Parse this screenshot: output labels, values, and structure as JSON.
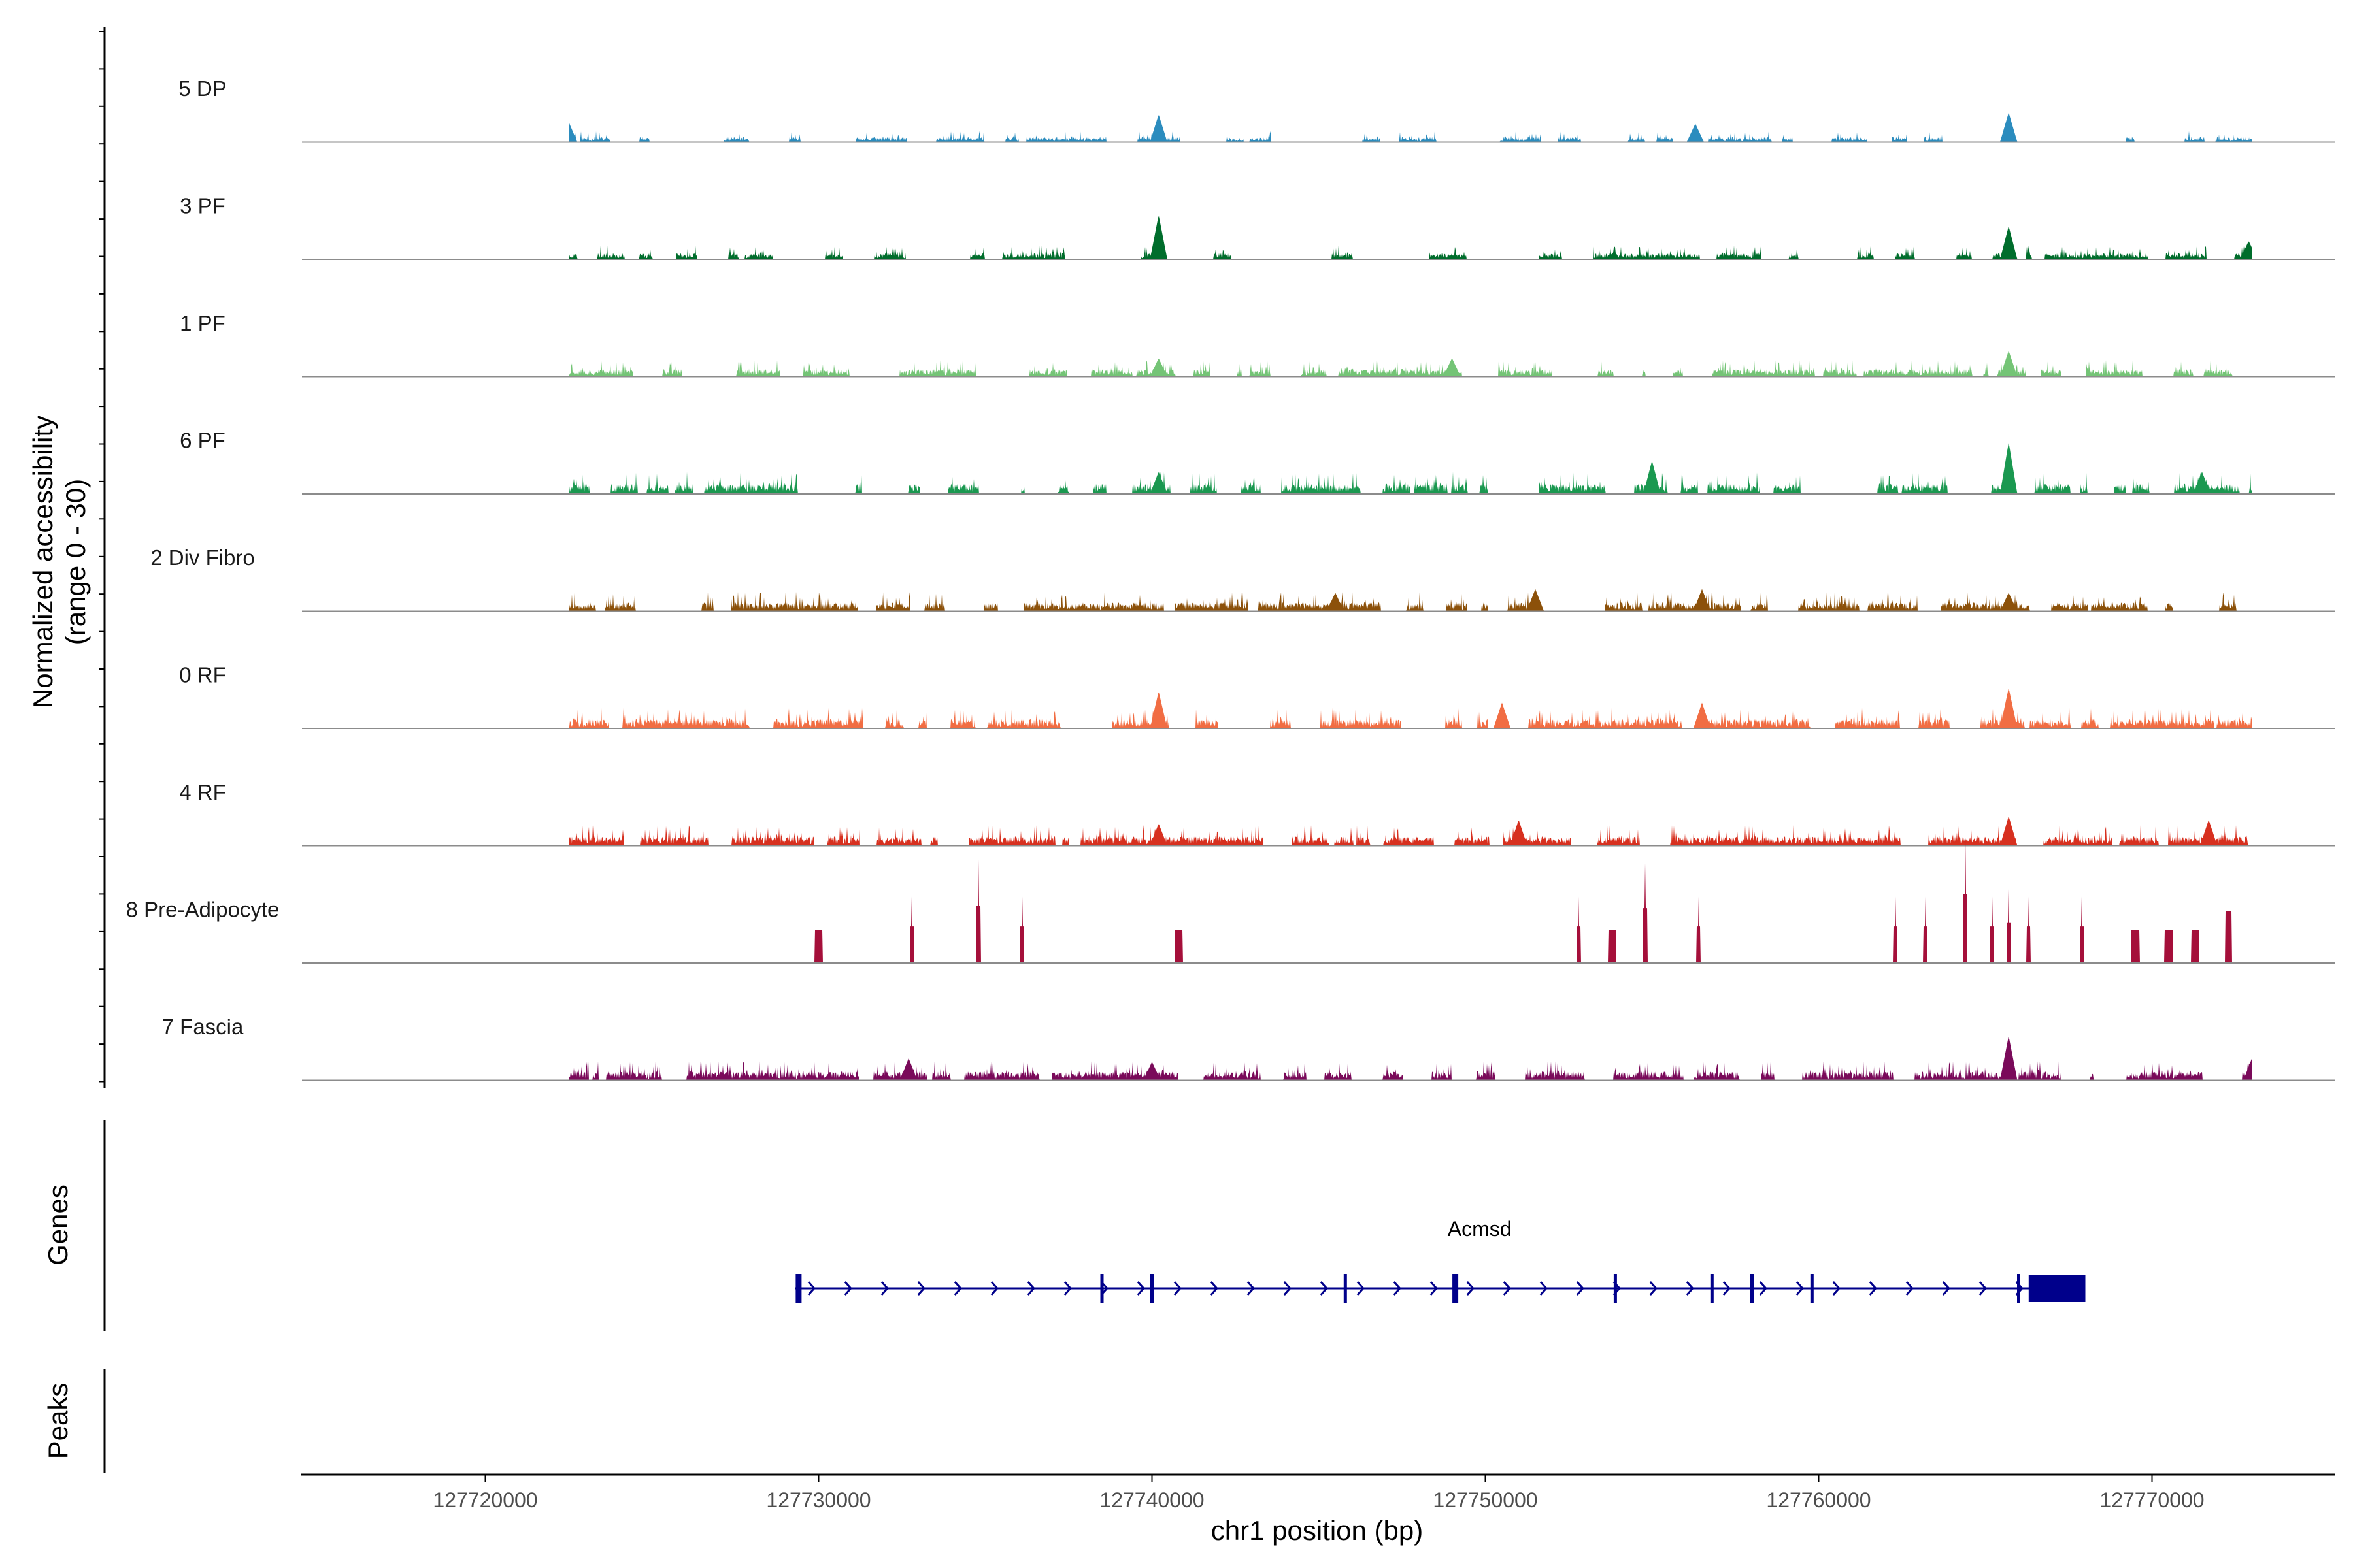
{
  "chart_data": {
    "type": "area",
    "title": "",
    "ylabel_line1": "Normalized accessibility",
    "ylabel_line2": "(range 0 - 30)",
    "ylim": [
      0,
      30
    ],
    "xlabel": "chr1 position (bp)",
    "xlim": [
      127714500,
      127775500
    ],
    "x_ticks": [
      127720000,
      127730000,
      127740000,
      127750000,
      127760000,
      127770000
    ],
    "x_tick_labels": [
      "127720000",
      "127730000",
      "127740000",
      "127750000",
      "127760000",
      "127770000"
    ],
    "panel_genes_label": "Genes",
    "panel_peaks_label": "Peaks",
    "signal_start": 127722500,
    "signal_end": 127773000,
    "tracks": [
      {
        "name": "5 DP",
        "color": "#2b8cbe",
        "seed": 11,
        "baseline": 0.8,
        "density": 0.55,
        "peaks": [
          [
            127722500,
            5.5
          ],
          [
            127740200,
            7.5
          ],
          [
            127756300,
            5
          ],
          [
            127765700,
            8
          ]
        ]
      },
      {
        "name": "3 PF",
        "color": "#006d2c",
        "seed": 23,
        "baseline": 1.0,
        "density": 0.6,
        "peaks": [
          [
            127740200,
            12
          ],
          [
            127765700,
            9
          ],
          [
            127772900,
            5
          ]
        ]
      },
      {
        "name": "1 PF",
        "color": "#74c476",
        "seed": 37,
        "baseline": 1.2,
        "density": 0.7,
        "peaks": [
          [
            127740200,
            5
          ],
          [
            127749000,
            5
          ],
          [
            127765700,
            7
          ]
        ]
      },
      {
        "name": "6 PF",
        "color": "#1a9850",
        "seed": 41,
        "baseline": 1.6,
        "density": 0.7,
        "peaks": [
          [
            127740200,
            6
          ],
          [
            127755000,
            9
          ],
          [
            127765700,
            14
          ],
          [
            127771500,
            6
          ]
        ]
      },
      {
        "name": "2 Div Fibro",
        "color": "#8c510a",
        "seed": 53,
        "baseline": 1.4,
        "density": 0.7,
        "peaks": [
          [
            127745500,
            5
          ],
          [
            127751500,
            6
          ],
          [
            127756500,
            6
          ],
          [
            127765700,
            5
          ]
        ]
      },
      {
        "name": "0 RF",
        "color": "#f16d43",
        "seed": 67,
        "baseline": 1.5,
        "density": 0.8,
        "peaks": [
          [
            127740200,
            10
          ],
          [
            127750500,
            7
          ],
          [
            127756500,
            7
          ],
          [
            127765700,
            11
          ]
        ]
      },
      {
        "name": "4 RF",
        "color": "#d7301f",
        "seed": 71,
        "baseline": 1.5,
        "density": 0.8,
        "peaks": [
          [
            127740200,
            6
          ],
          [
            127751000,
            7
          ],
          [
            127765700,
            8
          ],
          [
            127771700,
            7
          ]
        ]
      },
      {
        "name": "8 Pre-Adipocyte",
        "color": "#a50f3a",
        "seed": 83,
        "baseline": 0,
        "density": 0,
        "spikes": [
          [
            127730000,
            9,
            100
          ],
          [
            127732800,
            18,
            40
          ],
          [
            127734800,
            28,
            50
          ],
          [
            127736100,
            18,
            40
          ],
          [
            127740800,
            9,
            100
          ],
          [
            127752800,
            18,
            40
          ],
          [
            127753800,
            9,
            100
          ],
          [
            127754800,
            27,
            50
          ],
          [
            127756400,
            18,
            40
          ],
          [
            127762300,
            18,
            40
          ],
          [
            127763200,
            18,
            40
          ],
          [
            127764400,
            34,
            40
          ],
          [
            127765200,
            18,
            40
          ],
          [
            127765700,
            20,
            40
          ],
          [
            127766300,
            18,
            40
          ],
          [
            127767900,
            18,
            40
          ],
          [
            127769500,
            9,
            100
          ],
          [
            127770500,
            9,
            100
          ],
          [
            127771300,
            9,
            100
          ],
          [
            127772300,
            14,
            80
          ]
        ]
      },
      {
        "name": "7 Fascia",
        "color": "#7a0a5a",
        "seed": 97,
        "baseline": 1.4,
        "density": 0.75,
        "peaks": [
          [
            127732700,
            6
          ],
          [
            127740000,
            5
          ],
          [
            127765700,
            12
          ],
          [
            127773000,
            6
          ]
        ]
      }
    ],
    "gene": {
      "name": "Acmsd",
      "start": 127729300,
      "end": 127768000,
      "strand": "+",
      "color": "#00008b",
      "exons": [
        127729400,
        127738500,
        127740000,
        127745800,
        127749100,
        127753900,
        127756800,
        127758000,
        127759800,
        127766000
      ],
      "utr_end": [
        127766300,
        127768000
      ]
    }
  }
}
